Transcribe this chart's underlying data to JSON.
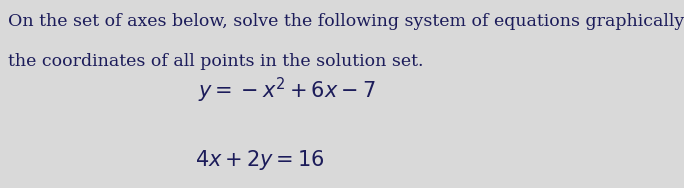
{
  "background_color": "#d9d9d9",
  "paragraph_line1": "On the set of axes below, solve the following system of equations graphically and state",
  "paragraph_line2": "the coordinates of all points in the solution set.",
  "eq1": "$y = -x^{2} + 6x - 7$",
  "eq2": "$4x + 2y = 16$",
  "text_color": "#1c1c5a",
  "para_fontsize": 12.5,
  "eq_fontsize": 15,
  "fig_width": 6.84,
  "fig_height": 1.88,
  "dpi": 100
}
